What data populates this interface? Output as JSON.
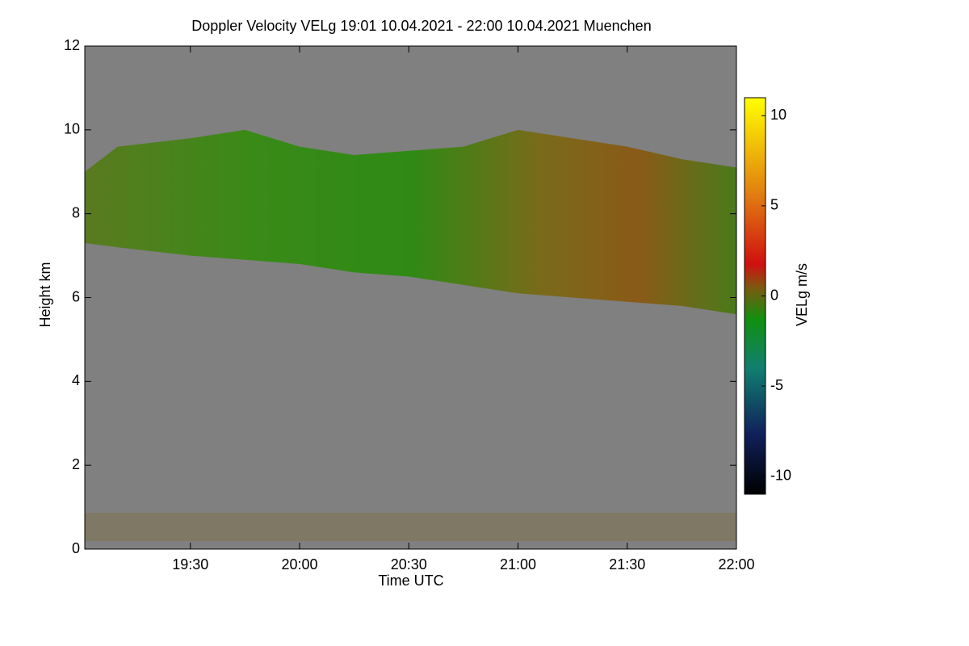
{
  "chart_data": {
    "type": "radar-section",
    "title": "Doppler Velocity VELg   19:01 10.04.2021 - 22:00 10.04.2021 Muenchen",
    "x_label": "Time UTC",
    "y_label": "Height km",
    "xlim": [
      19.0167,
      22
    ],
    "xticks": [
      {
        "value": 19.5,
        "label": "19:30"
      },
      {
        "value": 20,
        "label": "20:00"
      },
      {
        "value": 20.5,
        "label": "20:30"
      },
      {
        "value": 21,
        "label": "21:00"
      },
      {
        "value": 21.5,
        "label": "21:30"
      },
      {
        "value": 22,
        "label": "22:00"
      }
    ],
    "ylim": [
      0,
      12
    ],
    "yticks": [
      0,
      2,
      4,
      6,
      8,
      10,
      12
    ],
    "background_color": "#808080",
    "cloud": {
      "x": [
        19.0167,
        19.1667,
        19.5,
        19.75,
        20,
        20.25,
        20.5,
        20.75,
        21,
        21.25,
        21.5,
        21.75,
        22
      ],
      "top": [
        9.0,
        9.6,
        9.8,
        10.0,
        9.6,
        9.4,
        9.5,
        9.6,
        10.0,
        9.8,
        9.6,
        9.3,
        9.1
      ],
      "base": [
        7.3,
        7.2,
        7.0,
        6.9,
        6.8,
        6.6,
        6.5,
        6.3,
        6.1,
        6.0,
        5.9,
        5.8,
        5.6
      ]
    },
    "colorbar": {
      "label": "VELg m/s",
      "lim": [
        -11,
        11
      ],
      "ticks": [
        -10,
        -5,
        0,
        5,
        10
      ]
    }
  }
}
